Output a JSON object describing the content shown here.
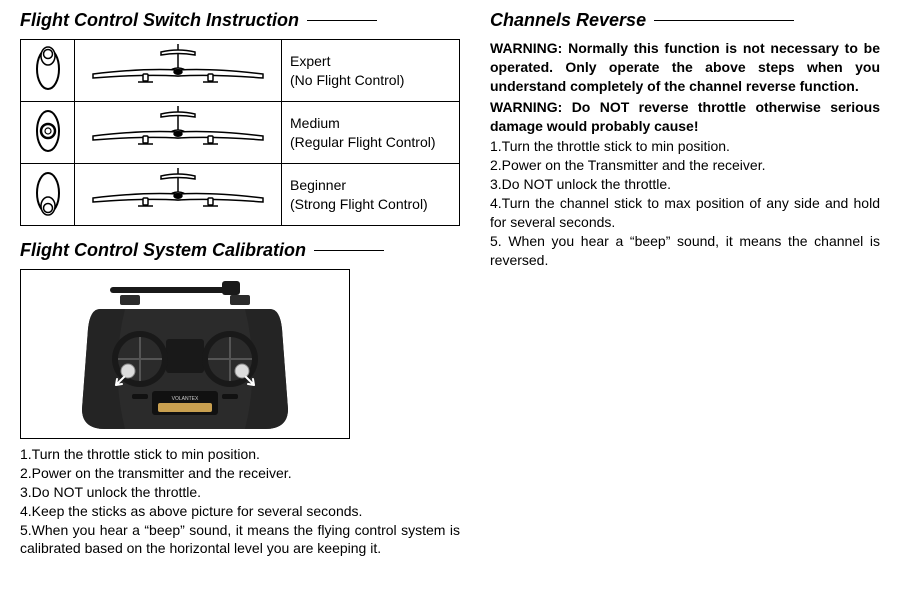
{
  "colors": {
    "text": "#000000",
    "background": "#ffffff",
    "border": "#000000",
    "transmitter_body": "#2b2b2b",
    "transmitter_dark": "#191919",
    "transmitter_accent": "#c9a050",
    "transmitter_stick": "#dcdcdc"
  },
  "left": {
    "switch_heading": "Flight Control Switch Instruction",
    "switch_rows": [
      {
        "switch_pos": "up",
        "label1": "Expert",
        "label2": "(No Flight Control)"
      },
      {
        "switch_pos": "middle",
        "label1": "Medium",
        "label2": "(Regular Flight Control)"
      },
      {
        "switch_pos": "down",
        "label1": "Beginner",
        "label2": "(Strong Flight Control)"
      }
    ],
    "calib_heading": "Flight Control System Calibration",
    "calib_steps": [
      "1.Turn the throttle stick to min position.",
      "2.Power on the transmitter and the receiver.",
      "3.Do NOT unlock the throttle.",
      "4.Keep the sticks as above picture for several seconds.",
      "5.When you hear a “beep” sound, it means the flying control system is calibrated based on the horizontal level you are keeping it."
    ]
  },
  "right": {
    "heading": "Channels Reverse",
    "warning1": "WARNING: Normally this function is not necessary to be operated. Only operate the above steps when you understand completely of the channel reverse function.",
    "warning2": "WARNING: Do NOT reverse throttle otherwise serious damage would probably cause!",
    "steps": [
      "1.Turn the throttle stick to min position.",
      "2.Power on the Transmitter and the receiver.",
      "3.Do NOT unlock the throttle.",
      "4.Turn the channel stick to max position of any side and hold for several seconds.",
      "5. When you hear a “beep” sound, it means the channel is reversed."
    ]
  }
}
